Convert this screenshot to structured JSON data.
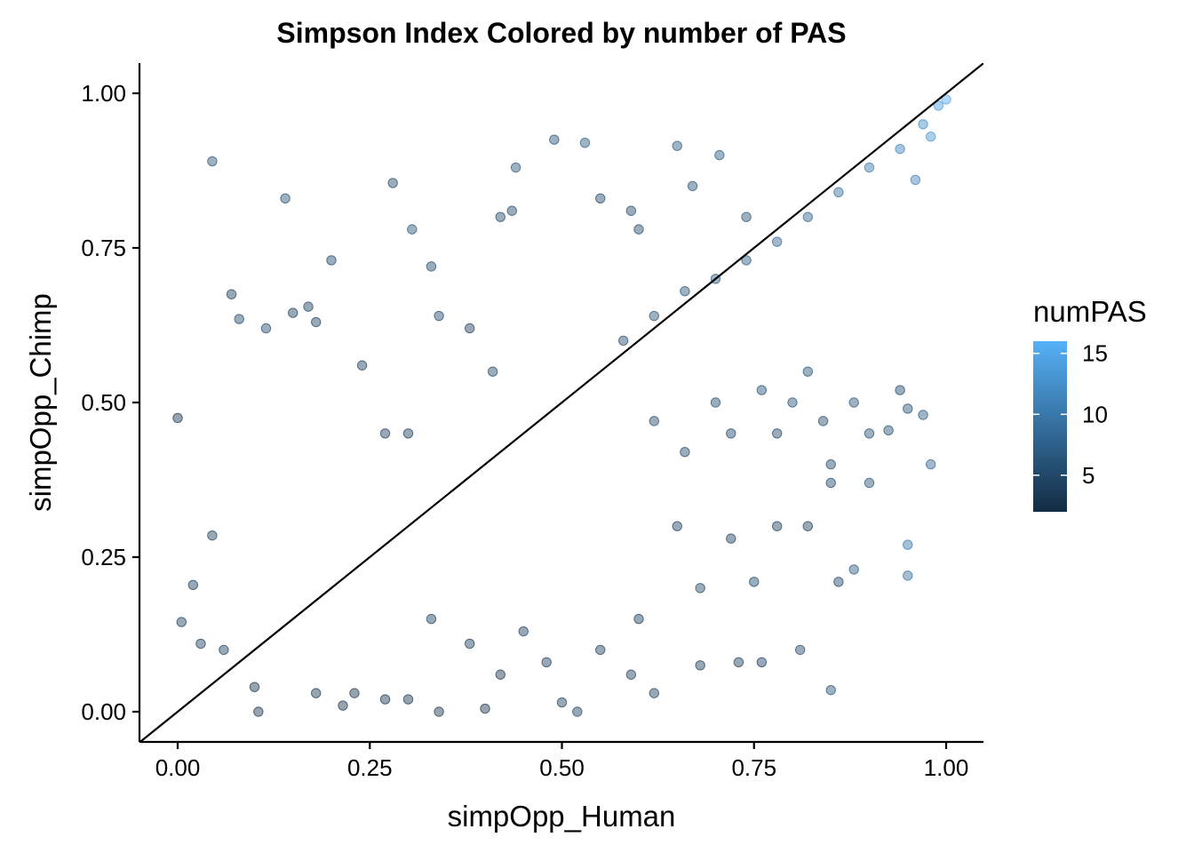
{
  "chart_data": {
    "type": "scatter",
    "title": "Simpson Index Colored by number of PAS",
    "xlabel": "simpOpp_Human",
    "ylabel": "simpOpp_Chimp",
    "xlim": [
      -0.05,
      1.05
    ],
    "ylim": [
      -0.05,
      1.05
    ],
    "x_ticks": [
      "0.00",
      "0.25",
      "0.50",
      "0.75",
      "1.00"
    ],
    "y_ticks": [
      "0.00",
      "0.25",
      "0.50",
      "0.75",
      "1.00"
    ],
    "reference_line": {
      "slope": 1,
      "intercept": 0,
      "color": "#000000"
    },
    "point_opacity": 0.45,
    "grid": false,
    "legend": {
      "title": "numPAS",
      "position": "right",
      "type": "colorbar",
      "range": [
        2,
        16
      ],
      "ticks": [
        "5",
        "10",
        "15"
      ],
      "low_color": "#132B43",
      "high_color": "#56B1F7"
    },
    "points": [
      [
        0.0,
        0.475,
        3
      ],
      [
        0.045,
        0.89,
        6
      ],
      [
        0.07,
        0.675,
        4
      ],
      [
        0.14,
        0.83,
        6
      ],
      [
        0.28,
        0.855,
        5
      ],
      [
        0.305,
        0.78,
        6
      ],
      [
        0.2,
        0.73,
        5
      ],
      [
        0.08,
        0.635,
        5
      ],
      [
        0.115,
        0.62,
        5
      ],
      [
        0.15,
        0.645,
        4
      ],
      [
        0.17,
        0.655,
        4
      ],
      [
        0.045,
        0.285,
        4
      ],
      [
        0.02,
        0.205,
        4
      ],
      [
        0.005,
        0.145,
        4
      ],
      [
        0.03,
        0.11,
        4
      ],
      [
        0.06,
        0.1,
        4
      ],
      [
        0.1,
        0.04,
        3
      ],
      [
        0.105,
        0.0,
        3
      ],
      [
        0.18,
        0.03,
        3
      ],
      [
        0.215,
        0.01,
        3
      ],
      [
        0.18,
        0.63,
        4
      ],
      [
        0.24,
        0.56,
        4
      ],
      [
        0.27,
        0.45,
        4
      ],
      [
        0.3,
        0.45,
        4
      ],
      [
        0.33,
        0.72,
        5
      ],
      [
        0.34,
        0.64,
        5
      ],
      [
        0.38,
        0.62,
        4
      ],
      [
        0.41,
        0.55,
        5
      ],
      [
        0.42,
        0.8,
        5
      ],
      [
        0.435,
        0.81,
        5
      ],
      [
        0.44,
        0.88,
        6
      ],
      [
        0.49,
        0.925,
        6
      ],
      [
        0.53,
        0.92,
        7
      ],
      [
        0.55,
        0.83,
        5
      ],
      [
        0.59,
        0.81,
        5
      ],
      [
        0.6,
        0.78,
        5
      ],
      [
        0.65,
        0.915,
        7
      ],
      [
        0.67,
        0.85,
        6
      ],
      [
        0.705,
        0.9,
        7
      ],
      [
        0.74,
        0.8,
        6
      ],
      [
        0.85,
        0.37,
        5
      ],
      [
        0.9,
        0.37,
        6
      ],
      [
        0.925,
        0.455,
        6
      ],
      [
        0.97,
        0.48,
        7
      ],
      [
        0.98,
        0.4,
        8
      ],
      [
        0.9,
        0.45,
        6
      ],
      [
        0.94,
        0.52,
        5
      ],
      [
        0.95,
        0.49,
        6
      ],
      [
        0.85,
        0.4,
        5
      ],
      [
        0.86,
        0.21,
        5
      ],
      [
        0.88,
        0.23,
        7
      ],
      [
        0.95,
        0.27,
        10
      ],
      [
        0.95,
        0.22,
        9
      ],
      [
        0.85,
        0.035,
        6
      ],
      [
        0.81,
        0.1,
        5
      ],
      [
        0.76,
        0.08,
        4
      ],
      [
        0.73,
        0.08,
        4
      ],
      [
        0.68,
        0.075,
        4
      ],
      [
        0.62,
        0.03,
        4
      ],
      [
        0.59,
        0.06,
        4
      ],
      [
        0.52,
        0.0,
        4
      ],
      [
        0.5,
        0.015,
        4
      ],
      [
        0.4,
        0.005,
        3
      ],
      [
        0.34,
        0.0,
        3
      ],
      [
        0.3,
        0.02,
        3
      ],
      [
        0.27,
        0.02,
        3
      ],
      [
        0.23,
        0.03,
        3
      ],
      [
        0.65,
        0.3,
        4
      ],
      [
        0.72,
        0.28,
        4
      ],
      [
        0.78,
        0.3,
        4
      ],
      [
        0.75,
        0.21,
        5
      ],
      [
        0.82,
        0.3,
        4
      ],
      [
        0.68,
        0.2,
        5
      ],
      [
        0.6,
        0.15,
        4
      ],
      [
        0.55,
        0.1,
        4
      ],
      [
        0.48,
        0.08,
        4
      ],
      [
        0.45,
        0.13,
        4
      ],
      [
        0.42,
        0.06,
        3
      ],
      [
        0.38,
        0.11,
        4
      ],
      [
        0.33,
        0.15,
        4
      ],
      [
        0.62,
        0.47,
        5
      ],
      [
        0.66,
        0.42,
        5
      ],
      [
        0.7,
        0.5,
        5
      ],
      [
        0.72,
        0.45,
        5
      ],
      [
        0.76,
        0.52,
        6
      ],
      [
        0.78,
        0.45,
        5
      ],
      [
        0.8,
        0.5,
        6
      ],
      [
        0.82,
        0.55,
        6
      ],
      [
        0.84,
        0.47,
        5
      ],
      [
        0.88,
        0.5,
        6
      ],
      [
        0.58,
        0.6,
        5
      ],
      [
        0.62,
        0.64,
        6
      ],
      [
        0.66,
        0.68,
        6
      ],
      [
        0.7,
        0.7,
        7
      ],
      [
        0.74,
        0.73,
        7
      ],
      [
        0.78,
        0.76,
        8
      ],
      [
        0.82,
        0.8,
        8
      ],
      [
        0.86,
        0.84,
        9
      ],
      [
        0.9,
        0.88,
        10
      ],
      [
        0.94,
        0.91,
        11
      ],
      [
        0.97,
        0.95,
        12
      ],
      [
        0.99,
        0.98,
        14
      ],
      [
        1.0,
        0.99,
        15
      ],
      [
        0.98,
        0.93,
        13
      ],
      [
        0.96,
        0.86,
        11
      ]
    ]
  }
}
